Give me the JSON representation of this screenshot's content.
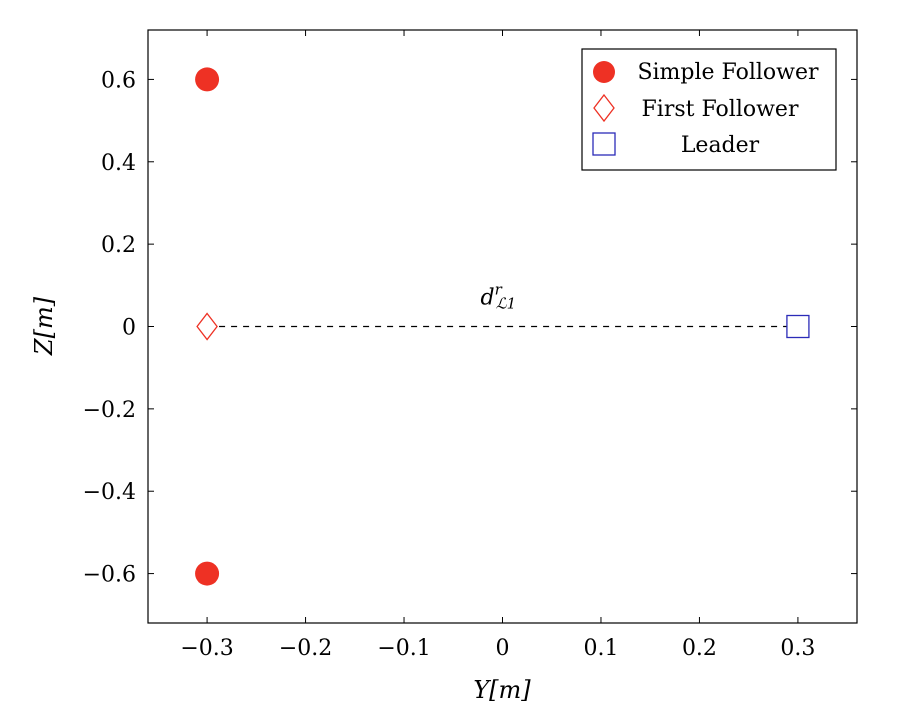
{
  "chart_data": {
    "type": "scatter",
    "xlabel": "Y[m]",
    "ylabel": "Z[m]",
    "xlim": [
      -0.36,
      0.36
    ],
    "ylim": [
      -0.72,
      0.72
    ],
    "x_ticks": [
      -0.3,
      -0.2,
      -0.1,
      0,
      0.1,
      0.2,
      0.3
    ],
    "x_tick_labels": [
      "−0.3",
      "−0.2",
      "−0.1",
      "0",
      "0.1",
      "0.2",
      "0.3"
    ],
    "y_ticks": [
      -0.6,
      -0.4,
      -0.2,
      0,
      0.2,
      0.4,
      0.6
    ],
    "y_tick_labels": [
      "−0.6",
      "−0.4",
      "−0.2",
      "0",
      "0.2",
      "0.4",
      "0.6"
    ],
    "grid": false,
    "legend_position": "top-right",
    "series": [
      {
        "name": "Simple Follower",
        "marker": "circle-filled",
        "color": "#ee3124",
        "points": [
          [
            -0.3,
            0.6
          ],
          [
            -0.3,
            -0.6
          ]
        ]
      },
      {
        "name": "First Follower",
        "marker": "diamond",
        "color": "#ee3124",
        "points": [
          [
            -0.3,
            0.0
          ]
        ]
      },
      {
        "name": "Leader",
        "marker": "square",
        "color": "#2b2bb8",
        "points": [
          [
            0.3,
            0.0
          ]
        ]
      }
    ],
    "annotations": [
      {
        "text": "d",
        "superscript": "r",
        "subscript": "ℒ1",
        "x": 0.0,
        "y": 0.0,
        "connector": {
          "from": [
            -0.3,
            0.0
          ],
          "to": [
            0.3,
            0.0
          ],
          "style": "dashed"
        }
      }
    ]
  }
}
